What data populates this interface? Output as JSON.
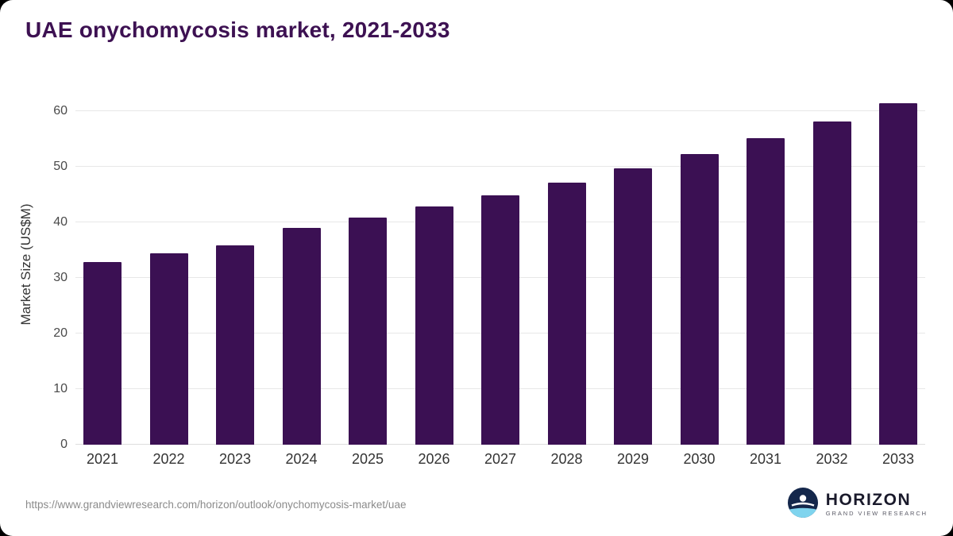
{
  "title": "UAE onychomycosis market, 2021-2033",
  "chart_data": {
    "type": "bar",
    "title": "UAE onychomycosis market, 2021-2033",
    "categories": [
      "2021",
      "2022",
      "2023",
      "2024",
      "2025",
      "2026",
      "2027",
      "2028",
      "2029",
      "2030",
      "2031",
      "2032",
      "2033"
    ],
    "values": [
      32.9,
      34.4,
      35.8,
      39.0,
      40.8,
      42.8,
      44.8,
      47.2,
      49.7,
      52.3,
      55.2,
      58.2,
      61.5
    ],
    "xlabel": "",
    "ylabel": "Market Size (US$M)",
    "ylim": [
      0,
      65
    ],
    "yticks": [
      0,
      10,
      20,
      30,
      40,
      50,
      60
    ],
    "grid": "horizontal",
    "legend": "none",
    "bar_color": "#3b1053"
  },
  "footer": {
    "source_url": "https://www.grandviewresearch.com/horizon/outlook/onychomycosis-market/uae",
    "brand": {
      "name": "HORIZON",
      "tagline": "GRAND VIEW RESEARCH"
    }
  },
  "colors": {
    "title_text": "#3d1152",
    "bar": "#3b1053",
    "gridline": "#e7e7e7",
    "axis_text": "#4a4a4a",
    "logo_circle": "#14274b",
    "logo_wave": "#7fd4ee"
  }
}
